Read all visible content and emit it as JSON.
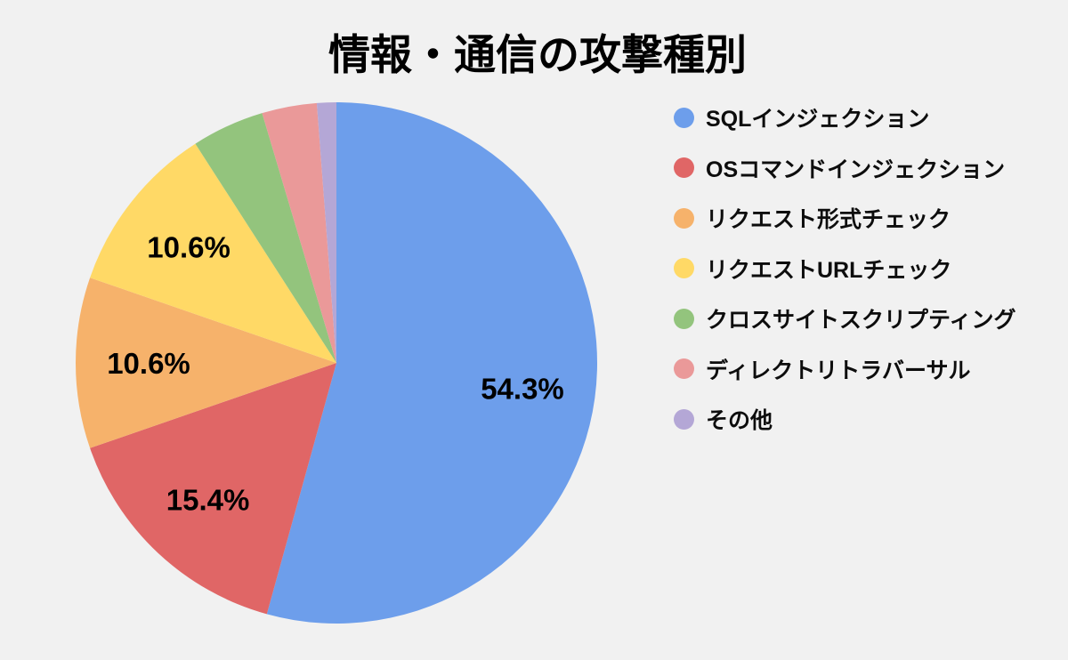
{
  "chart_data": {
    "type": "pie",
    "title": "情報・通信の攻撃種別",
    "legend_position": "right",
    "background_color": "#f1f1f1",
    "text_color": "#000000",
    "start_angle_deg": 0,
    "direction": "clockwise",
    "slices": [
      {
        "label": "SQLインジェクション",
        "value": 54.3,
        "data_label": "54.3%",
        "color": "#6d9eeb"
      },
      {
        "label": "OSコマンドインジェクション",
        "value": 15.4,
        "data_label": "15.4%",
        "color": "#e06666"
      },
      {
        "label": "リクエスト形式チェック",
        "value": 10.6,
        "data_label": "10.6%",
        "color": "#f6b26b"
      },
      {
        "label": "リクエストURLチェック",
        "value": 10.6,
        "data_label": "10.6%",
        "color": "#ffd966"
      },
      {
        "label": "クロスサイトスクリプティング",
        "value": 4.5,
        "data_label": "",
        "color": "#93c47d"
      },
      {
        "label": "ディレクトリトラバーサル",
        "value": 3.4,
        "data_label": "",
        "color": "#ea9999"
      },
      {
        "label": "その他",
        "value": 1.2,
        "data_label": "",
        "color": "#b4a7d6"
      }
    ]
  }
}
